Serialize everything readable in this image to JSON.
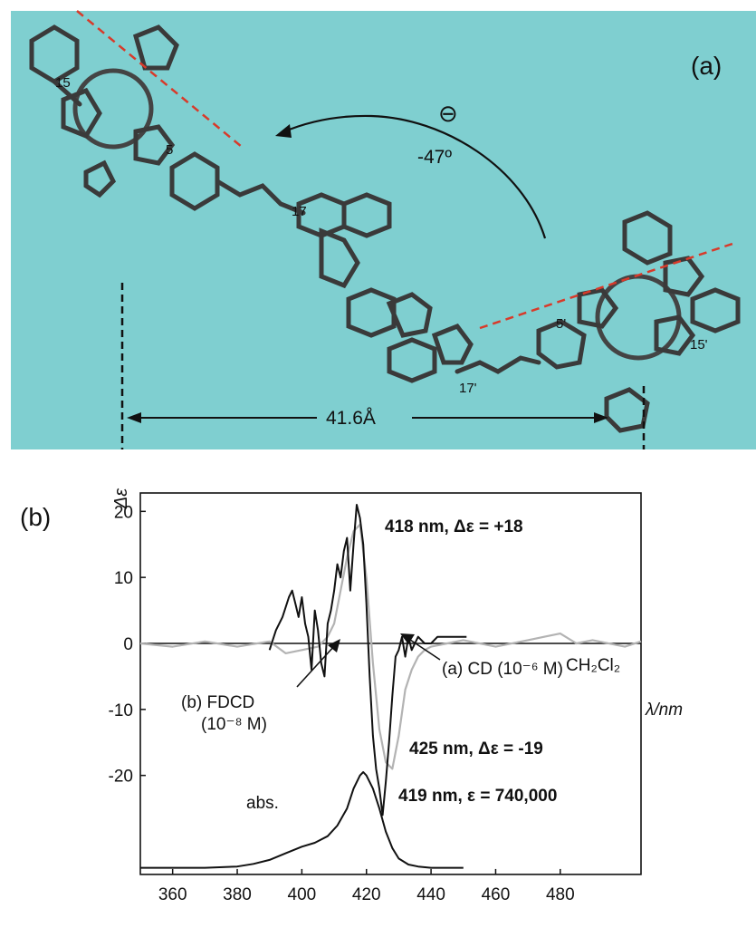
{
  "panel_a": {
    "label": "(a)",
    "background": "#7fcfd0",
    "atom_labels": {
      "c15": "15",
      "c5": "5",
      "c17": "17",
      "c5p": "5'",
      "c15p": "15'",
      "c17p": "17'"
    },
    "rotation": {
      "sign": "⊖",
      "angle": "-47º"
    },
    "distance": "41.6Å"
  },
  "panel_b": {
    "label": "(b)",
    "y_axis_label": "Δε",
    "x_axis_label": "λ/nm",
    "solvent": "CH₂Cl₂",
    "annotations": {
      "peak_top": "418 nm, Δε = +18",
      "peak_bottom": "425 nm, Δε = -19",
      "abs_peak": "419 nm, ε = 740,000",
      "abs": "abs.",
      "fdcd_line1": "(b) FDCD",
      "fdcd_line2": "(10⁻⁸ M)",
      "cd": "(a) CD (10⁻⁶ M)"
    }
  },
  "chart_data": {
    "type": "line",
    "xlabel": "λ/nm",
    "ylabel": "Δε",
    "xlim": [
      350,
      505
    ],
    "ylim": [
      -35,
      22
    ],
    "x_ticks": [
      360,
      380,
      400,
      420,
      440,
      460,
      480
    ],
    "y_ticks": [
      20,
      10,
      0,
      -10,
      -20
    ],
    "grid": false,
    "series": [
      {
        "name": "(b) FDCD (10⁻⁸ M)",
        "color": "#111111",
        "x": [
          390,
          392,
          394,
          396,
          397,
          398,
          399,
          400,
          401,
          402,
          403,
          404,
          405,
          406,
          407,
          408,
          409,
          410,
          411,
          412,
          413,
          414,
          415,
          416,
          417,
          418,
          419,
          420,
          421,
          422,
          423,
          424,
          425,
          426,
          427,
          428,
          429,
          430,
          431,
          432,
          433,
          434,
          436,
          438,
          440,
          442,
          446,
          451
        ],
        "y": [
          -1,
          2,
          4,
          7,
          8,
          6,
          4,
          7,
          3,
          1,
          -4,
          5,
          2,
          -3,
          -5,
          3,
          5,
          8,
          12,
          10,
          14,
          16,
          8,
          15,
          21,
          19,
          15,
          6,
          -5,
          -14,
          -19,
          -22,
          -26,
          -21,
          -15,
          -8,
          -2,
          -1,
          1,
          -2,
          1,
          -1,
          1,
          0,
          0,
          1,
          1,
          1
        ]
      },
      {
        "name": "(a) CD (10⁻⁶ M)",
        "color": "#b3b3b3",
        "x": [
          350,
          360,
          370,
          380,
          390,
          395,
          400,
          405,
          408,
          410,
          412,
          414,
          416,
          418,
          420,
          422,
          424,
          426,
          428,
          430,
          432,
          434,
          436,
          438,
          440,
          445,
          450,
          460,
          470,
          475,
          480,
          485,
          490,
          500,
          505
        ],
        "y": [
          0,
          -0.5,
          0.3,
          -0.5,
          0.3,
          -1.5,
          -1,
          -0.5,
          1,
          3,
          8,
          13,
          17,
          18,
          10,
          -3,
          -13,
          -18,
          -19,
          -14,
          -7,
          -4,
          -2,
          -1,
          -0.5,
          0,
          0.5,
          -0.5,
          0.5,
          1,
          1.5,
          0,
          0.5,
          -0.5,
          0.3
        ]
      },
      {
        "name": "abs.",
        "color": "#111111",
        "x": [
          350,
          360,
          370,
          380,
          385,
          390,
          395,
          400,
          404,
          408,
          411,
          414,
          416,
          418,
          419,
          420,
          422,
          424,
          426,
          428,
          430,
          433,
          436,
          440,
          445,
          450
        ],
        "y": [
          -34,
          -34,
          -34,
          -33.8,
          -33.4,
          -32.8,
          -31.8,
          -30.8,
          -30.2,
          -29.2,
          -27.6,
          -25,
          -22,
          -20,
          -19.5,
          -20,
          -22,
          -25,
          -28.5,
          -31,
          -32.6,
          -33.5,
          -33.8,
          -34,
          -34,
          -34
        ]
      }
    ]
  }
}
